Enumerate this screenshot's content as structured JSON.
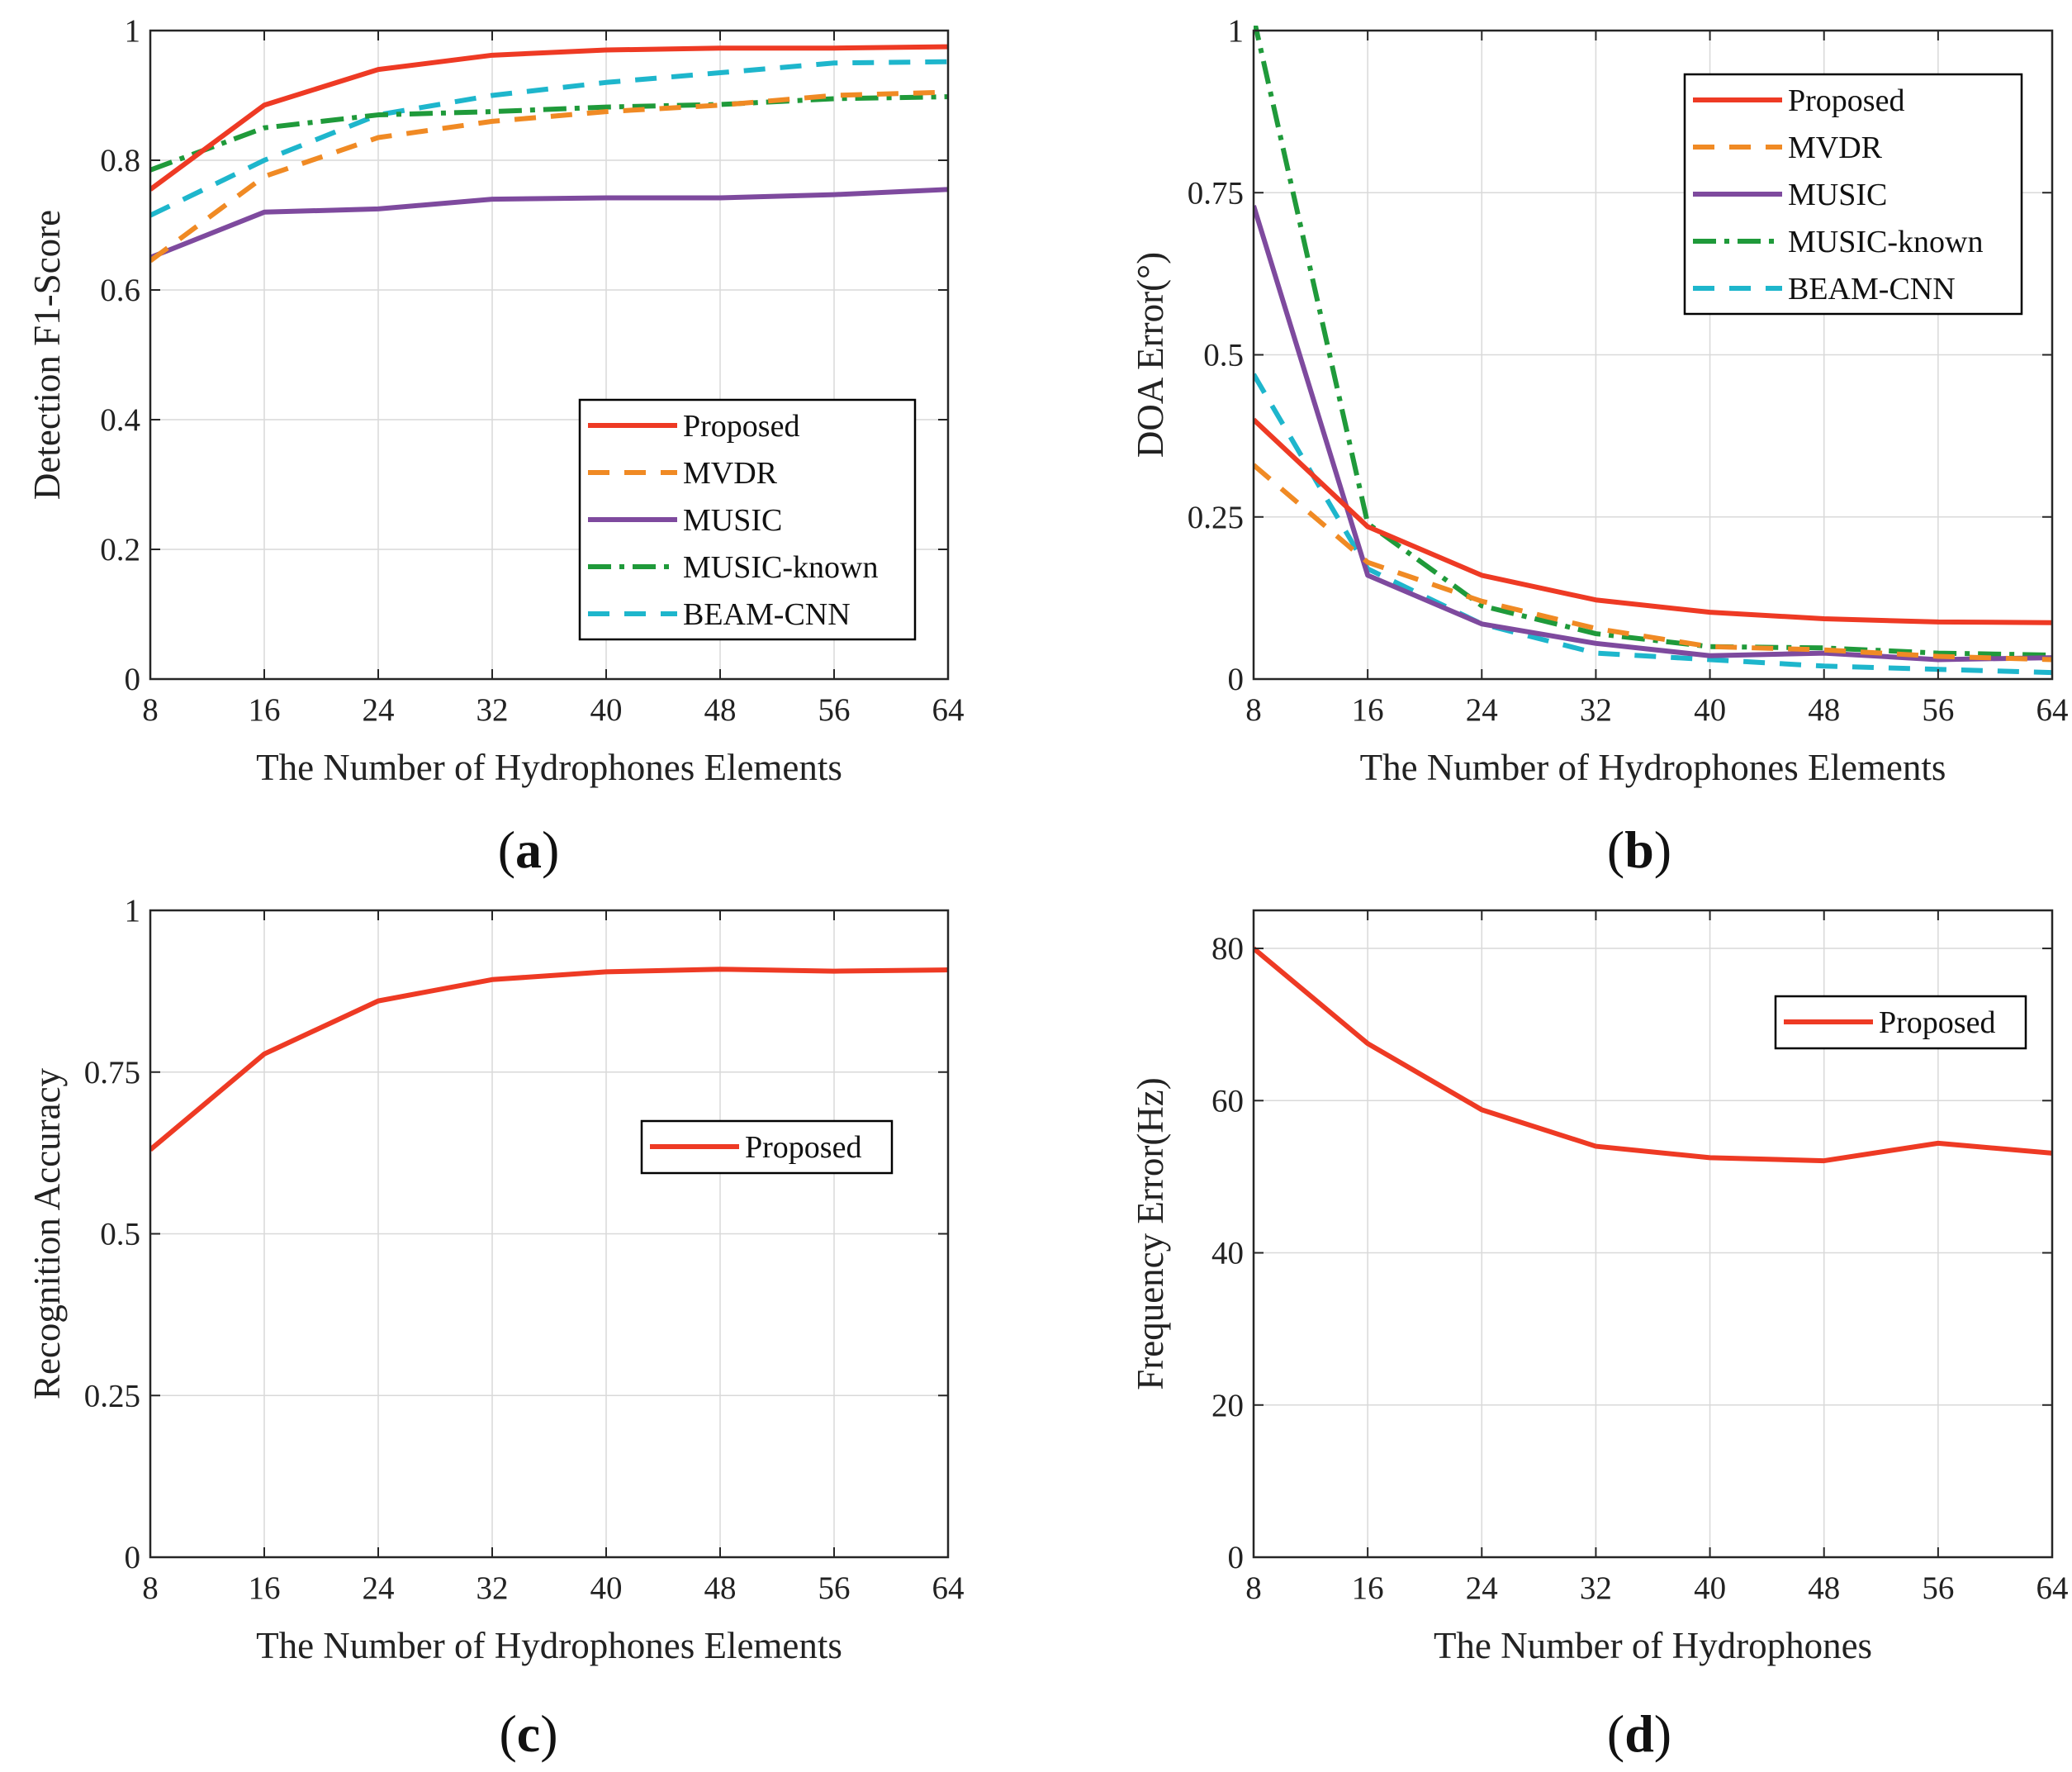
{
  "series_styles": {
    "Proposed": {
      "color": "#ee3a24",
      "dash": ""
    },
    "MVDR": {
      "color": "#f08a24",
      "dash": "26,18"
    },
    "MUSIC": {
      "color": "#7e4a9e",
      "dash": ""
    },
    "MUSIC-known": {
      "color": "#1f9a3a",
      "dash": "28,10,6,10"
    },
    "BEAM-CNN": {
      "color": "#1eb6cc",
      "dash": "26,18"
    }
  },
  "chart_data": [
    {
      "id": "a",
      "type": "line",
      "caption_letter": "a",
      "xlabel": "The Number of Hydrophones Elements",
      "ylabel": "Detection F1-Score",
      "xlim": [
        8,
        64
      ],
      "ylim": [
        0,
        1
      ],
      "xticks": [
        8,
        16,
        24,
        32,
        40,
        48,
        56,
        64
      ],
      "yticks": [
        0,
        0.2,
        0.4,
        0.6,
        0.8,
        1
      ],
      "yticklabels": [
        "0",
        "0.2",
        "0.4",
        "0.6",
        "0.8",
        "1"
      ],
      "legend_position": "lower-right",
      "x": [
        8,
        16,
        24,
        32,
        40,
        48,
        56,
        64
      ],
      "series": [
        {
          "name": "Proposed",
          "values": [
            0.755,
            0.885,
            0.94,
            0.962,
            0.97,
            0.973,
            0.973,
            0.975
          ]
        },
        {
          "name": "MVDR",
          "values": [
            0.645,
            0.775,
            0.835,
            0.86,
            0.875,
            0.885,
            0.9,
            0.905
          ]
        },
        {
          "name": "MUSIC",
          "values": [
            0.65,
            0.72,
            0.725,
            0.74,
            0.742,
            0.742,
            0.747,
            0.755
          ]
        },
        {
          "name": "MUSIC-known",
          "values": [
            0.785,
            0.85,
            0.87,
            0.875,
            0.882,
            0.886,
            0.895,
            0.898
          ]
        },
        {
          "name": "BEAM-CNN",
          "values": [
            0.715,
            0.8,
            0.87,
            0.9,
            0.92,
            0.935,
            0.95,
            0.952
          ]
        }
      ]
    },
    {
      "id": "b",
      "type": "line",
      "caption_letter": "b",
      "xlabel": "The Number of Hydrophones Elements",
      "ylabel": "DOA Error(°)",
      "xlim": [
        8,
        64
      ],
      "ylim": [
        0,
        1
      ],
      "xticks": [
        8,
        16,
        24,
        32,
        40,
        48,
        56,
        64
      ],
      "yticks": [
        0,
        0.25,
        0.5,
        0.75,
        1
      ],
      "yticklabels": [
        "0",
        "0.25",
        "0.5",
        "0.75",
        "1"
      ],
      "legend_position": "top-right",
      "x": [
        8,
        16,
        24,
        32,
        40,
        48,
        56,
        64
      ],
      "series": [
        {
          "name": "Proposed",
          "values": [
            0.4,
            0.235,
            0.16,
            0.122,
            0.103,
            0.093,
            0.088,
            0.087
          ]
        },
        {
          "name": "MVDR",
          "values": [
            0.33,
            0.18,
            0.12,
            0.078,
            0.05,
            0.045,
            0.035,
            0.03
          ]
        },
        {
          "name": "MUSIC",
          "values": [
            0.73,
            0.16,
            0.085,
            0.055,
            0.036,
            0.04,
            0.03,
            0.033
          ]
        },
        {
          "name": "MUSIC-known",
          "values": [
            1.02,
            0.24,
            0.113,
            0.07,
            0.05,
            0.048,
            0.04,
            0.037
          ]
        },
        {
          "name": "BEAM-CNN",
          "values": [
            0.47,
            0.17,
            0.085,
            0.04,
            0.03,
            0.02,
            0.015,
            0.01
          ]
        }
      ]
    },
    {
      "id": "c",
      "type": "line",
      "caption_letter": "c",
      "xlabel": "The Number of Hydrophones Elements",
      "ylabel": "Recognition Accuracy",
      "xlim": [
        8,
        64
      ],
      "ylim": [
        0,
        1
      ],
      "xticks": [
        8,
        16,
        24,
        32,
        40,
        48,
        56,
        64
      ],
      "yticks": [
        0,
        0.25,
        0.5,
        0.75,
        1
      ],
      "yticklabels": [
        "0",
        "0.25",
        "0.5",
        "0.75",
        "1"
      ],
      "legend_position": "center-right",
      "x": [
        8,
        16,
        24,
        32,
        40,
        48,
        56,
        64
      ],
      "series": [
        {
          "name": "Proposed",
          "values": [
            0.63,
            0.778,
            0.86,
            0.893,
            0.905,
            0.909,
            0.906,
            0.908
          ]
        }
      ]
    },
    {
      "id": "d",
      "type": "line",
      "caption_letter": "d",
      "xlabel": "The Number of Hydrophones",
      "ylabel": "Frequency Error(Hz)",
      "xlim": [
        8,
        64
      ],
      "ylim": [
        0,
        85
      ],
      "xticks": [
        8,
        16,
        24,
        32,
        40,
        48,
        56,
        64
      ],
      "yticks": [
        0,
        20,
        40,
        60,
        80
      ],
      "yticklabels": [
        "0",
        "20",
        "40",
        "60",
        "80"
      ],
      "legend_position": "top-right",
      "x": [
        8,
        16,
        24,
        32,
        40,
        48,
        56,
        64
      ],
      "series": [
        {
          "name": "Proposed",
          "values": [
            80,
            67.5,
            58.8,
            54,
            52.5,
            52.1,
            54.4,
            53.1
          ]
        }
      ]
    }
  ]
}
